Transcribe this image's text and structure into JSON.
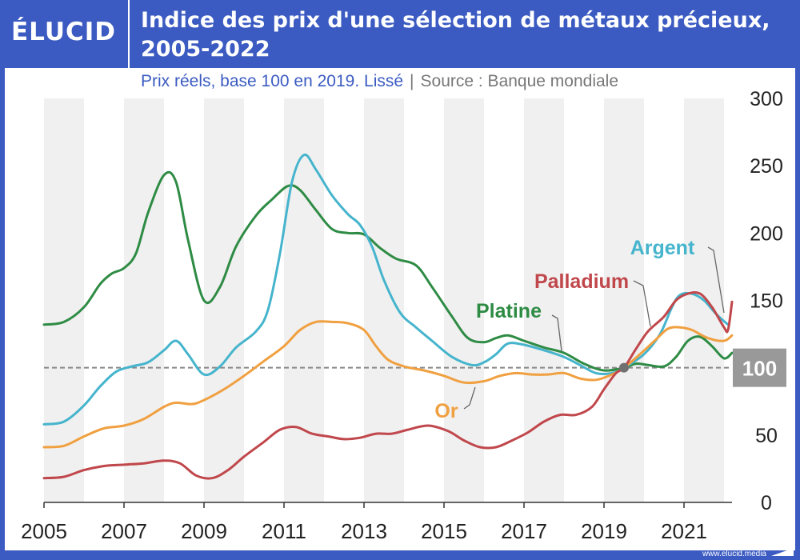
{
  "header": {
    "brand": "ÉLUCID",
    "title": "Indice des prix d'une sélection de métaux précieux, 2005-2022",
    "subtitle": "Prix réels, base 100 en 2019. Lissé",
    "source": "Source : Banque mondiale"
  },
  "footer": {
    "url": "www.elucid.media"
  },
  "colors": {
    "frame": "#3b5bc2",
    "argent": "#45b4cc",
    "palladium": "#c0474b",
    "platine": "#2e8b44",
    "or": "#f0a040",
    "band": "#f0f0f0",
    "refline": "#888888",
    "refbox": "#999999"
  },
  "chart_data": {
    "type": "line",
    "xlim": [
      2005,
      2022.2
    ],
    "ylim": [
      0,
      300
    ],
    "x_ticks": [
      2005,
      2007,
      2009,
      2011,
      2013,
      2015,
      2017,
      2019,
      2021
    ],
    "y_ticks": [
      0,
      50,
      100,
      150,
      200,
      250,
      300
    ],
    "reference": {
      "value": 100,
      "label": "100",
      "x": 2019.5
    },
    "series": [
      {
        "name": "Platine",
        "key": "platine",
        "label_at": [
          2017.8,
          111
        ],
        "points": [
          [
            2005,
            132
          ],
          [
            2005.5,
            134
          ],
          [
            2006,
            145
          ],
          [
            2006.4,
            162
          ],
          [
            2006.7,
            170
          ],
          [
            2007,
            174
          ],
          [
            2007.3,
            185
          ],
          [
            2007.6,
            215
          ],
          [
            2008,
            243
          ],
          [
            2008.3,
            238
          ],
          [
            2008.6,
            195
          ],
          [
            2009,
            150
          ],
          [
            2009.4,
            160
          ],
          [
            2009.8,
            190
          ],
          [
            2010.3,
            213
          ],
          [
            2010.7,
            225
          ],
          [
            2011.1,
            235
          ],
          [
            2011.4,
            232
          ],
          [
            2011.8,
            217
          ],
          [
            2012.2,
            203
          ],
          [
            2012.6,
            200
          ],
          [
            2013,
            199
          ],
          [
            2013.4,
            189
          ],
          [
            2013.8,
            181
          ],
          [
            2014.3,
            176
          ],
          [
            2014.7,
            160
          ],
          [
            2015.2,
            138
          ],
          [
            2015.6,
            122
          ],
          [
            2016,
            119
          ],
          [
            2016.3,
            122
          ],
          [
            2016.6,
            124
          ],
          [
            2017,
            120
          ],
          [
            2017.5,
            115
          ],
          [
            2018,
            111
          ],
          [
            2018.5,
            103
          ],
          [
            2019,
            98
          ],
          [
            2019.5,
            100
          ],
          [
            2019.8,
            103
          ],
          [
            2020.1,
            102
          ],
          [
            2020.5,
            101
          ],
          [
            2020.8,
            108
          ],
          [
            2021.1,
            120
          ],
          [
            2021.4,
            123
          ],
          [
            2021.7,
            116
          ],
          [
            2022,
            107
          ],
          [
            2022.2,
            111
          ]
        ]
      },
      {
        "name": "Argent",
        "key": "argent",
        "label_at": [
          2021.7,
          142
        ],
        "points": [
          [
            2005,
            58
          ],
          [
            2005.5,
            60
          ],
          [
            2006,
            72
          ],
          [
            2006.4,
            86
          ],
          [
            2006.8,
            97
          ],
          [
            2007.2,
            101
          ],
          [
            2007.6,
            104
          ],
          [
            2008,
            113
          ],
          [
            2008.3,
            120
          ],
          [
            2008.6,
            110
          ],
          [
            2009,
            95
          ],
          [
            2009.4,
            101
          ],
          [
            2009.8,
            115
          ],
          [
            2010.3,
            127
          ],
          [
            2010.6,
            143
          ],
          [
            2010.9,
            185
          ],
          [
            2011.2,
            238
          ],
          [
            2011.5,
            258
          ],
          [
            2011.8,
            247
          ],
          [
            2012.2,
            228
          ],
          [
            2012.6,
            214
          ],
          [
            2012.9,
            206
          ],
          [
            2013.2,
            190
          ],
          [
            2013.5,
            165
          ],
          [
            2013.9,
            141
          ],
          [
            2014.3,
            130
          ],
          [
            2014.7,
            120
          ],
          [
            2015.2,
            108
          ],
          [
            2015.7,
            102
          ],
          [
            2016,
            104
          ],
          [
            2016.3,
            110
          ],
          [
            2016.6,
            118
          ],
          [
            2017,
            117
          ],
          [
            2017.5,
            113
          ],
          [
            2018,
            108
          ],
          [
            2018.4,
            102
          ],
          [
            2018.8,
            96
          ],
          [
            2019.2,
            96
          ],
          [
            2019.5,
            100
          ],
          [
            2020,
            110
          ],
          [
            2020.4,
            125
          ],
          [
            2020.7,
            145
          ],
          [
            2020.9,
            154
          ],
          [
            2021.2,
            155
          ],
          [
            2021.5,
            150
          ],
          [
            2021.8,
            140
          ],
          [
            2022.1,
            132
          ]
        ]
      },
      {
        "name": "Or",
        "key": "or",
        "label_at": [
          2015.9,
          90
        ],
        "points": [
          [
            2005,
            41
          ],
          [
            2005.5,
            42
          ],
          [
            2006,
            49
          ],
          [
            2006.5,
            55
          ],
          [
            2007,
            57
          ],
          [
            2007.5,
            62
          ],
          [
            2008,
            71
          ],
          [
            2008.3,
            74
          ],
          [
            2008.7,
            73
          ],
          [
            2009,
            76
          ],
          [
            2009.5,
            84
          ],
          [
            2010,
            94
          ],
          [
            2010.5,
            105
          ],
          [
            2011,
            116
          ],
          [
            2011.4,
            128
          ],
          [
            2011.8,
            134
          ],
          [
            2012.2,
            134
          ],
          [
            2012.6,
            133
          ],
          [
            2013,
            128
          ],
          [
            2013.3,
            116
          ],
          [
            2013.6,
            106
          ],
          [
            2014,
            101
          ],
          [
            2014.5,
            98
          ],
          [
            2015,
            94
          ],
          [
            2015.5,
            89
          ],
          [
            2016,
            90
          ],
          [
            2016.4,
            94
          ],
          [
            2016.8,
            96
          ],
          [
            2017.2,
            95
          ],
          [
            2017.6,
            95
          ],
          [
            2018,
            96
          ],
          [
            2018.4,
            92
          ],
          [
            2018.8,
            91
          ],
          [
            2019.2,
            95
          ],
          [
            2019.5,
            100
          ],
          [
            2019.9,
            110
          ],
          [
            2020.3,
            121
          ],
          [
            2020.6,
            129
          ],
          [
            2020.9,
            130
          ],
          [
            2021.2,
            128
          ],
          [
            2021.6,
            122
          ],
          [
            2022,
            120
          ],
          [
            2022.2,
            124
          ]
        ]
      },
      {
        "name": "Palladium",
        "key": "palladium",
        "label_at": [
          2019.4,
          120
        ],
        "points": [
          [
            2005,
            18
          ],
          [
            2005.5,
            19
          ],
          [
            2006,
            24
          ],
          [
            2006.5,
            27
          ],
          [
            2007,
            28
          ],
          [
            2007.5,
            29
          ],
          [
            2008,
            31
          ],
          [
            2008.4,
            29
          ],
          [
            2008.8,
            20
          ],
          [
            2009.2,
            18
          ],
          [
            2009.6,
            24
          ],
          [
            2010,
            34
          ],
          [
            2010.5,
            45
          ],
          [
            2010.9,
            54
          ],
          [
            2011.3,
            56
          ],
          [
            2011.7,
            51
          ],
          [
            2012.1,
            49
          ],
          [
            2012.5,
            47
          ],
          [
            2012.9,
            48
          ],
          [
            2013.3,
            51
          ],
          [
            2013.7,
            51
          ],
          [
            2014.1,
            54
          ],
          [
            2014.6,
            57
          ],
          [
            2015.1,
            53
          ],
          [
            2015.5,
            46
          ],
          [
            2015.9,
            41
          ],
          [
            2016.3,
            41
          ],
          [
            2016.7,
            46
          ],
          [
            2017.1,
            52
          ],
          [
            2017.5,
            60
          ],
          [
            2017.9,
            65
          ],
          [
            2018.3,
            65
          ],
          [
            2018.7,
            71
          ],
          [
            2019,
            84
          ],
          [
            2019.3,
            96
          ],
          [
            2019.5,
            100
          ],
          [
            2019.8,
            114
          ],
          [
            2020.1,
            127
          ],
          [
            2020.5,
            138
          ],
          [
            2020.8,
            150
          ],
          [
            2021.1,
            155
          ],
          [
            2021.4,
            155
          ],
          [
            2021.7,
            145
          ],
          [
            2022,
            130
          ],
          [
            2022.1,
            128
          ],
          [
            2022.2,
            149
          ]
        ]
      }
    ]
  }
}
